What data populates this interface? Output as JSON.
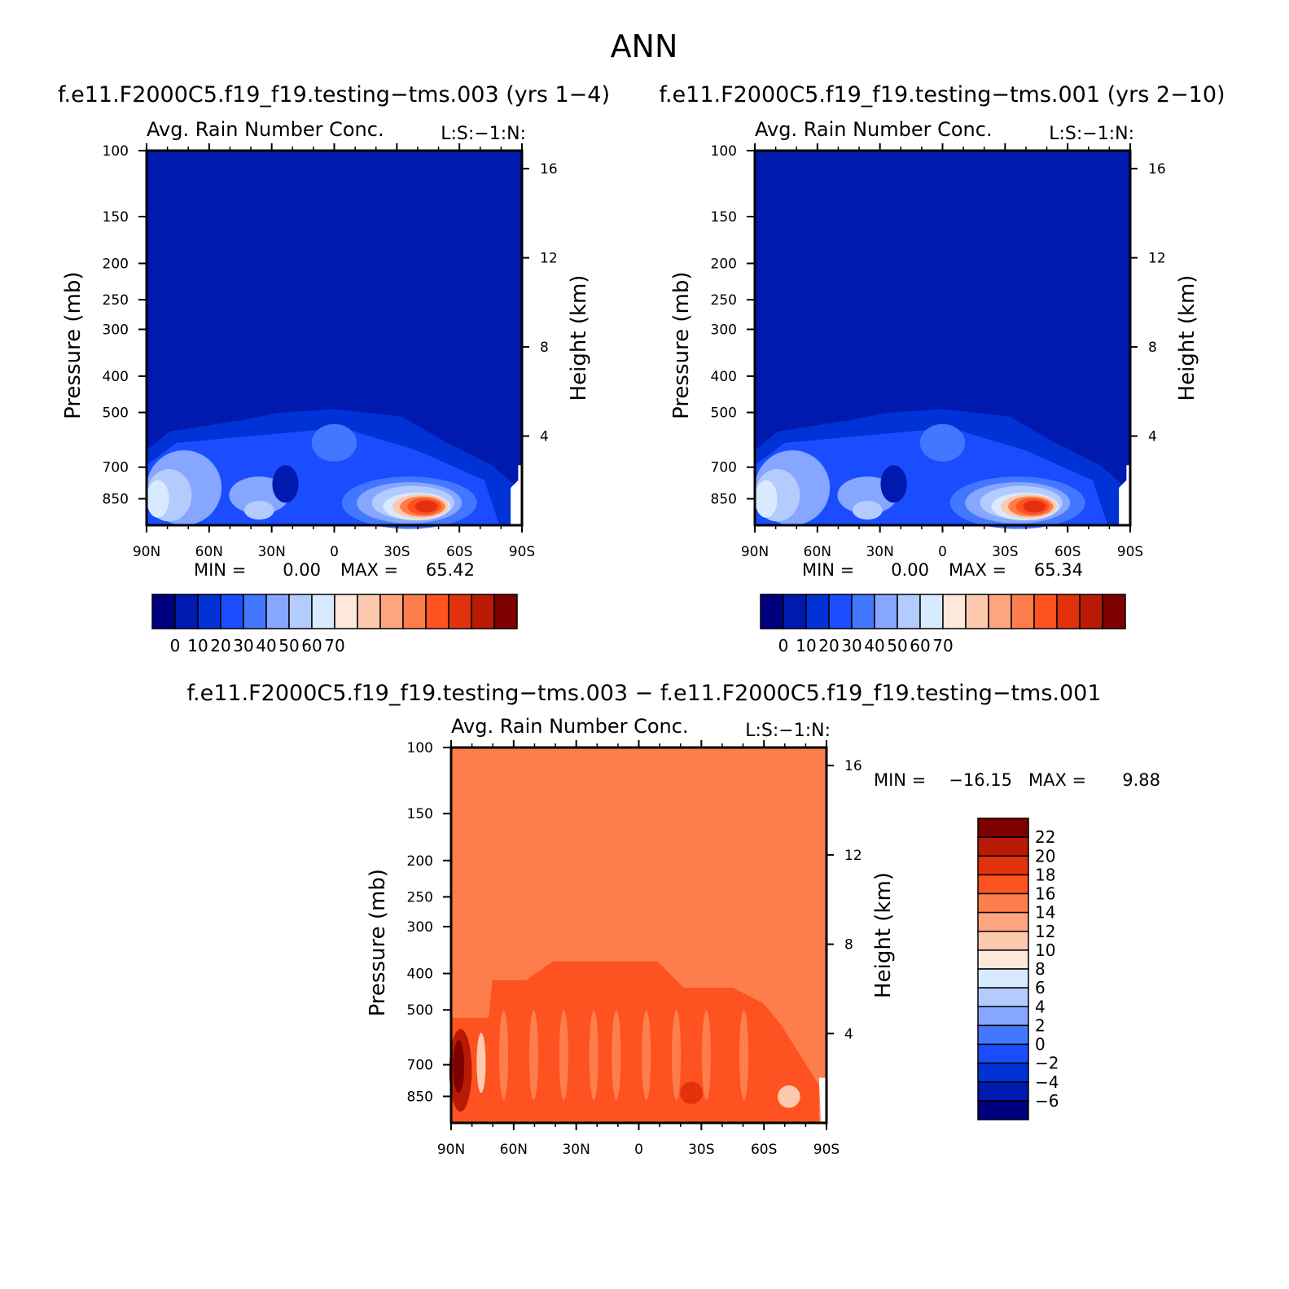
{
  "figure": {
    "title": "ANN",
    "difference_title": "f.e11.F2000C5.f19_f19.testing−tms.003 − f.e11.F2000C5.f19_f19.testing−tms.001"
  },
  "chart_data": [
    {
      "type": "heatmap",
      "title": "f.e11.F2000C5.f19_f19.testing−tms.003 (yrs 1−4)",
      "subtitle": "Avg. Rain Number Conc.",
      "tag": "L:S:−1:N:",
      "xlabel": "",
      "ylabel": "Pressure (mb)",
      "y2label": "Height (km)",
      "x_ticks": [
        "90N",
        "60N",
        "30N",
        "0",
        "30S",
        "60S",
        "90S"
      ],
      "y_ticks": [
        "100",
        "150",
        "200",
        "250",
        "300",
        "400",
        "500",
        "700",
        "850"
      ],
      "y2_ticks": [
        "16",
        "12",
        "8",
        "4"
      ],
      "ylim": [
        100,
        1000
      ],
      "y_scale": "log",
      "min_label": "MIN =",
      "min_value": "0.00",
      "max_label": "MAX =",
      "max_value": "65.42",
      "colorbar_labels": [
        "0",
        "10",
        "20",
        "30",
        "40",
        "50",
        "60",
        "70"
      ],
      "colorbar_colors": [
        "#00007f",
        "#0019af",
        "#0032d6",
        "#1a4dff",
        "#4477ff",
        "#86a6ff",
        "#b4cbff",
        "#d7eaff",
        "#fde8d9",
        "#fdcab0",
        "#fca57f",
        "#fd7e4c",
        "#fe5220",
        "#e2320d",
        "#b81a06",
        "#7f0000"
      ],
      "colorbar_placement": "bottom"
    },
    {
      "type": "heatmap",
      "title": "f.e11.F2000C5.f19_f19.testing−tms.001 (yrs 2−10)",
      "subtitle": "Avg. Rain Number Conc.",
      "tag": "L:S:−1:N:",
      "xlabel": "",
      "ylabel": "Pressure (mb)",
      "y2label": "Height (km)",
      "x_ticks": [
        "90N",
        "60N",
        "30N",
        "0",
        "30S",
        "60S",
        "90S"
      ],
      "y_ticks": [
        "100",
        "150",
        "200",
        "250",
        "300",
        "400",
        "500",
        "700",
        "850"
      ],
      "y2_ticks": [
        "16",
        "12",
        "8",
        "4"
      ],
      "ylim": [
        100,
        1000
      ],
      "y_scale": "log",
      "min_label": "MIN =",
      "min_value": "0.00",
      "max_label": "MAX =",
      "max_value": "65.34",
      "colorbar_labels": [
        "0",
        "10",
        "20",
        "30",
        "40",
        "50",
        "60",
        "70"
      ],
      "colorbar_colors": [
        "#00007f",
        "#0019af",
        "#0032d6",
        "#1a4dff",
        "#4477ff",
        "#86a6ff",
        "#b4cbff",
        "#d7eaff",
        "#fde8d9",
        "#fdcab0",
        "#fca57f",
        "#fd7e4c",
        "#fe5220",
        "#e2320d",
        "#b81a06",
        "#7f0000"
      ],
      "colorbar_placement": "bottom"
    },
    {
      "type": "heatmap",
      "title": "",
      "subtitle": "Avg. Rain Number Conc.",
      "tag": "L:S:−1:N:",
      "xlabel": "",
      "ylabel": "Pressure (mb)",
      "y2label": "Height (km)",
      "x_ticks": [
        "90N",
        "60N",
        "30N",
        "0",
        "30S",
        "60S",
        "90S"
      ],
      "y_ticks": [
        "100",
        "150",
        "200",
        "250",
        "300",
        "400",
        "500",
        "700",
        "850"
      ],
      "y2_ticks": [
        "16",
        "12",
        "8",
        "4"
      ],
      "ylim": [
        100,
        1000
      ],
      "y_scale": "log",
      "min_label": "MIN =",
      "min_value": "−16.15",
      "max_label": "MAX =",
      "max_value": "9.88",
      "colorbar_labels": [
        "22",
        "20",
        "18",
        "16",
        "14",
        "12",
        "10",
        "8",
        "6",
        "4",
        "2",
        "0",
        "−2",
        "−4",
        "−6"
      ],
      "colorbar_colors": [
        "#7f0000",
        "#b81a06",
        "#e2320d",
        "#fe5220",
        "#fd7e4c",
        "#fca57f",
        "#fdcab0",
        "#fde8d9",
        "#d7eaff",
        "#b4cbff",
        "#86a6ff",
        "#4477ff",
        "#1a4dff",
        "#0032d6",
        "#0019af",
        "#00007f"
      ],
      "colorbar_placement": "right"
    }
  ]
}
